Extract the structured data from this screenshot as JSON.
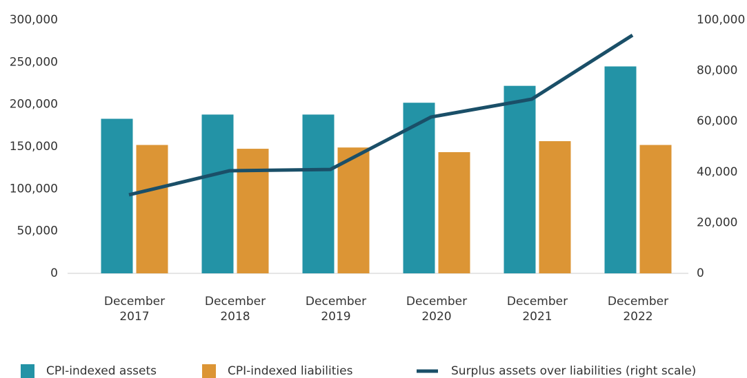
{
  "chart_data": {
    "type": "bar-line",
    "categories": [
      "December 2017",
      "December 2018",
      "December 2019",
      "December 2020",
      "December 2021",
      "December 2022"
    ],
    "series": [
      {
        "name": "CPI-indexed assets",
        "color": "#2393a6",
        "type": "bar",
        "values": [
          183000,
          188000,
          188000,
          202000,
          222000,
          245000
        ]
      },
      {
        "name": "CPI-indexed liabilities",
        "color": "#dc9535",
        "type": "bar",
        "values": [
          152000,
          147500,
          149000,
          143500,
          156500,
          152000
        ]
      },
      {
        "name": "Surplus assets over liabilities (right scale)",
        "color": "#1a4f68",
        "type": "line",
        "axis": "y2",
        "values": [
          31000,
          40500,
          41000,
          61700,
          68750,
          94000
        ]
      }
    ],
    "ylim": [
      0,
      300000
    ],
    "yticks": [
      0,
      {
        "value": 50000,
        "label": "50,000"
      },
      {
        "value": 100000,
        "label": "100,000"
      },
      {
        "value": 150000,
        "label": "150,000"
      },
      {
        "value": 200000,
        "label": "200,000"
      },
      {
        "value": 250000,
        "label": "250,000"
      },
      {
        "value": 300000,
        "label": "300,000"
      }
    ],
    "y2lim": [
      0,
      100000
    ],
    "y2ticks": [
      0,
      {
        "value": 20000,
        "label": "20,000"
      },
      {
        "value": 40000,
        "label": "40,000"
      },
      {
        "value": 60000,
        "label": "60,000"
      },
      {
        "value": 80000,
        "label": "80,000"
      },
      {
        "value": 100000,
        "label": "100,000"
      }
    ],
    "legend": "bottom"
  }
}
